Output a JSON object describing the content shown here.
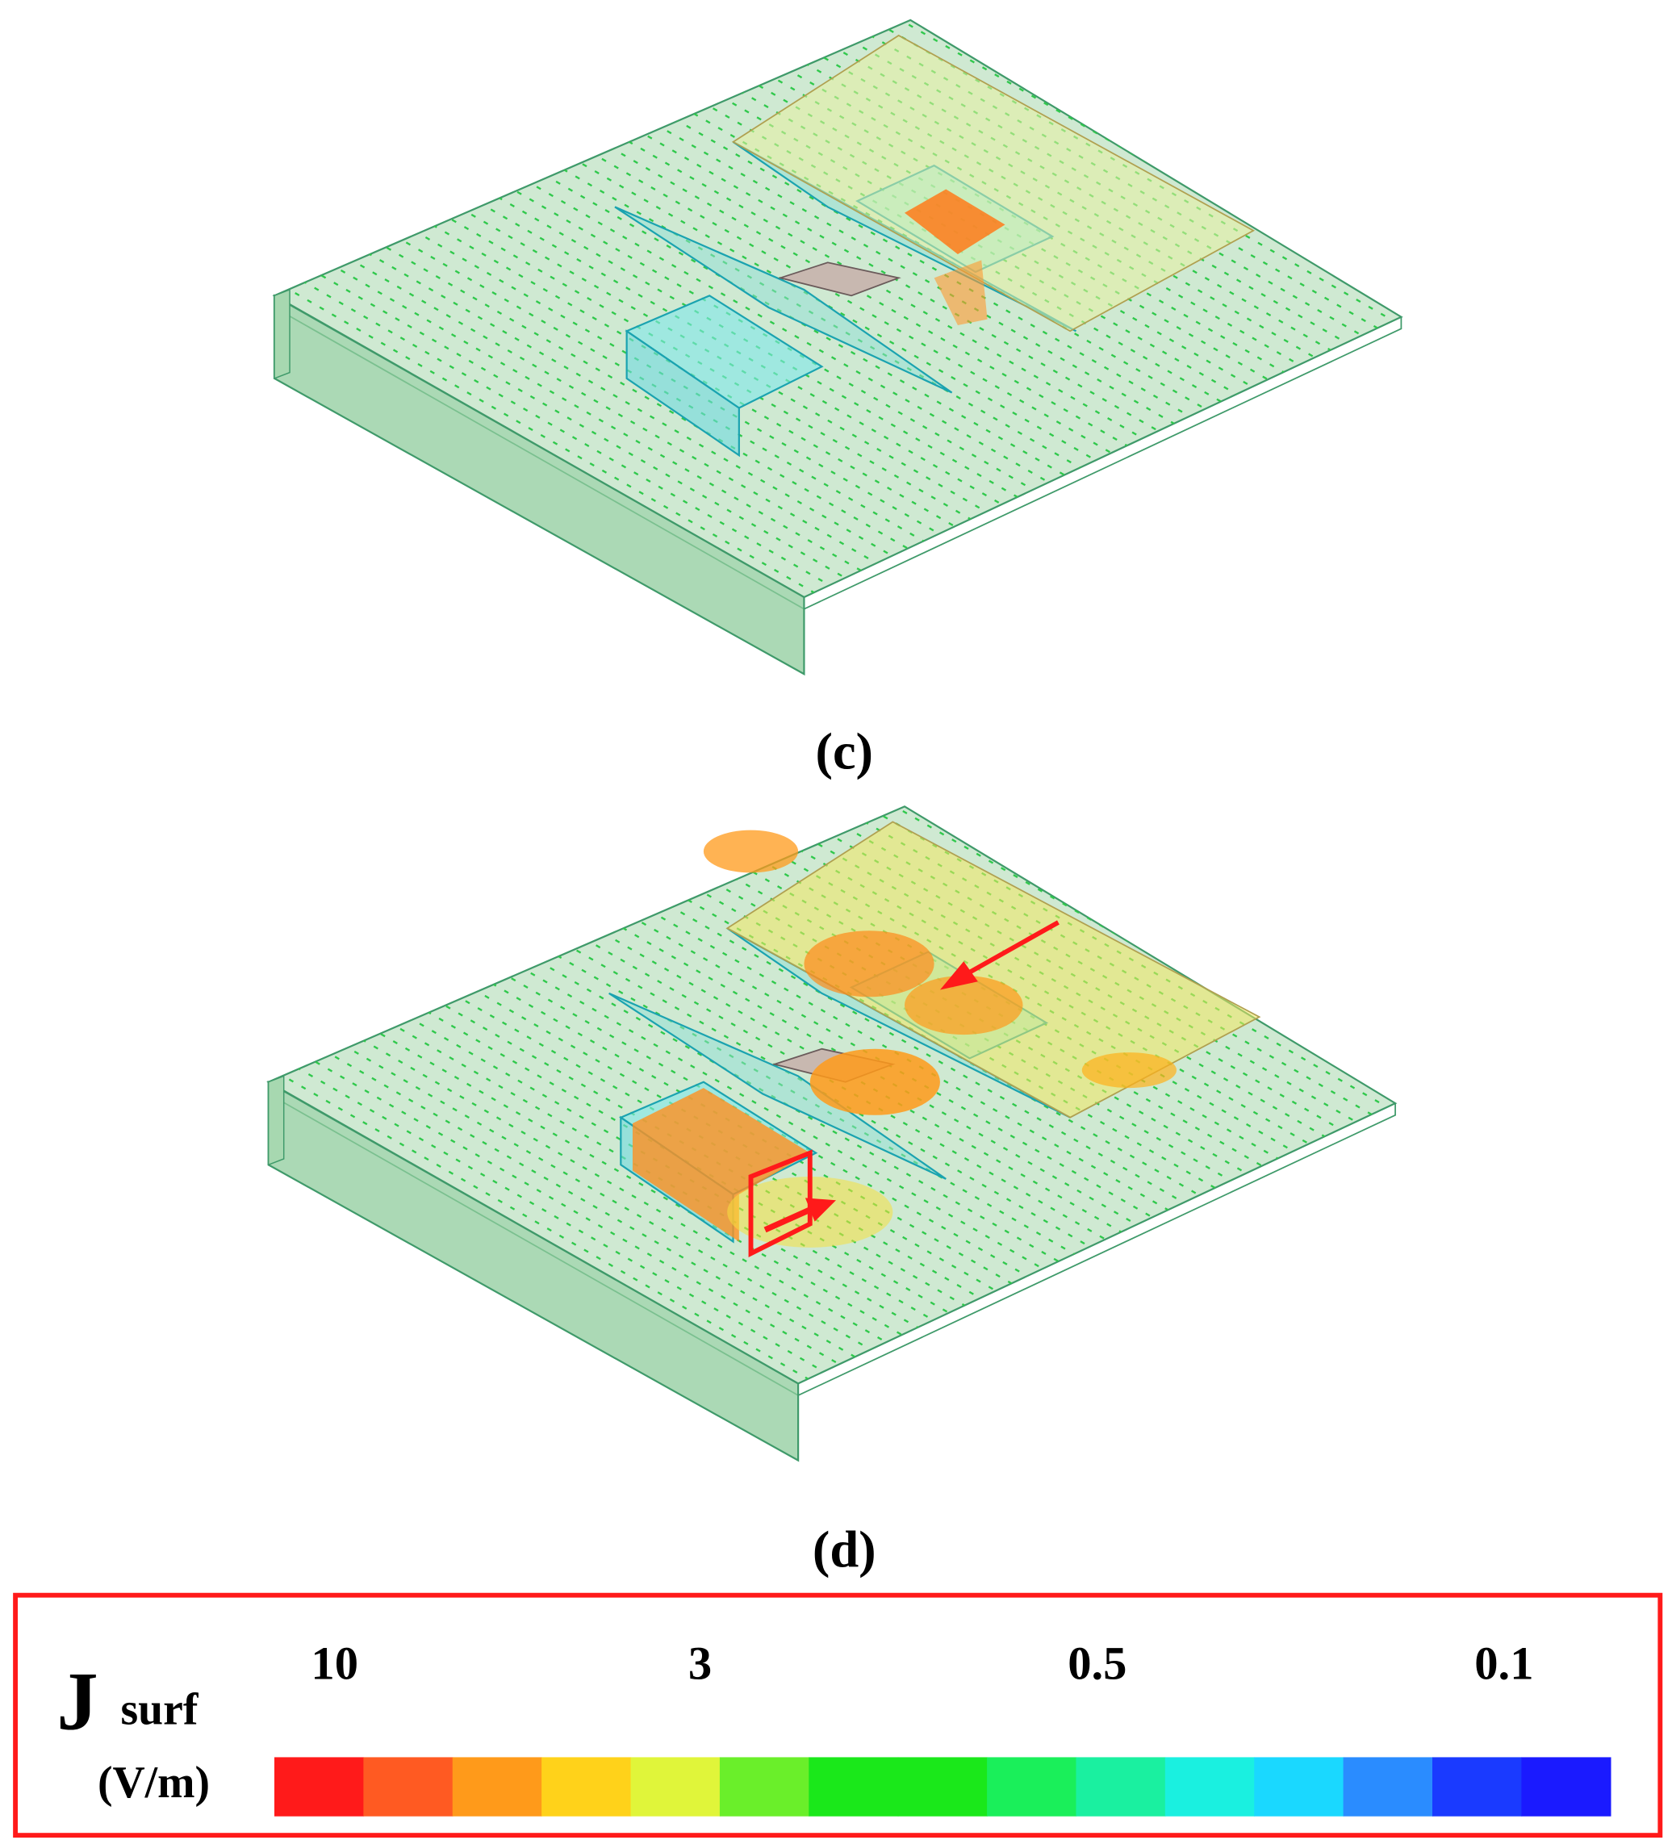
{
  "panels": [
    {
      "label": "(c)"
    },
    {
      "label": "(d)"
    }
  ],
  "legend": {
    "symbol": "J",
    "subscript": "surf",
    "unit": "(V/m)",
    "ticks": [
      "10",
      "3",
      "0.5",
      "0.1"
    ],
    "colors": [
      "#ff1a1a",
      "#ff5a22",
      "#ff9a1a",
      "#ffd21a",
      "#e0f53a",
      "#6aef2a",
      "#1ae81a",
      "#1ae81a",
      "#1aef5a",
      "#1af0a0",
      "#1af0e0",
      "#1ad8ff",
      "#2a8cff",
      "#1a3aff",
      "#1a1aff"
    ]
  }
}
